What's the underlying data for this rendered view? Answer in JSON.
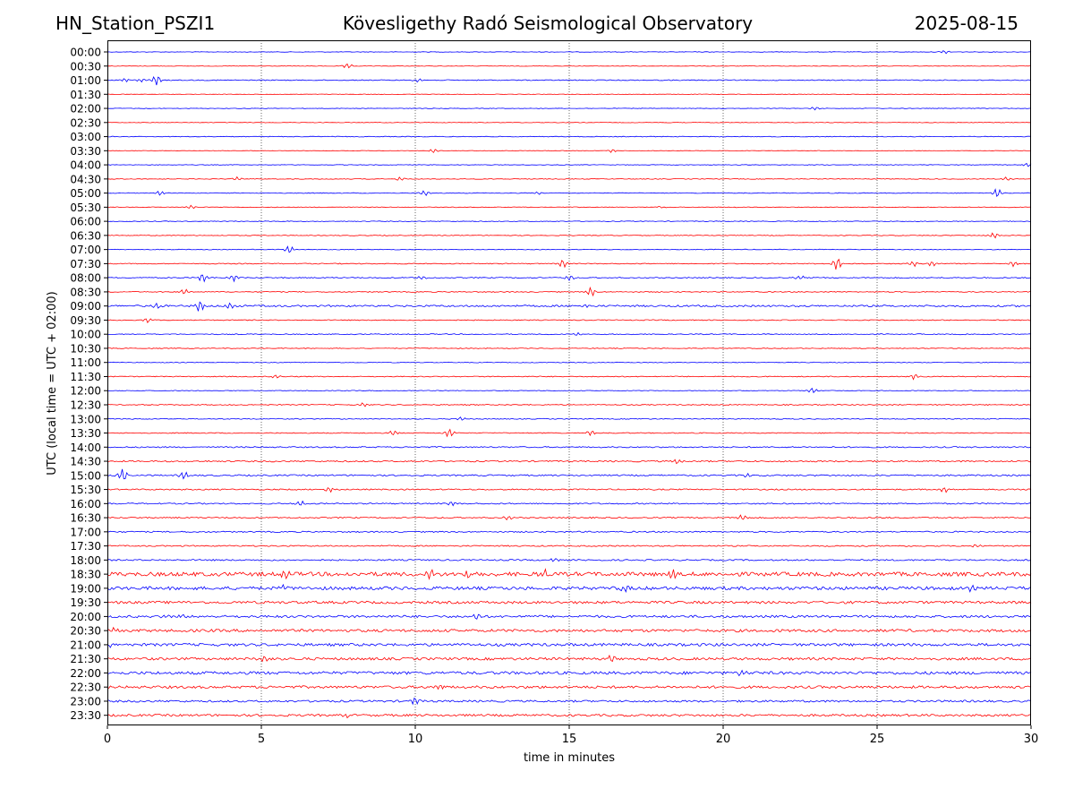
{
  "header": {
    "station": "HN_Station_PSZI1",
    "observatory": "Kövesligethy Radó Seismological Observatory",
    "date": "2025-08-15"
  },
  "colors": {
    "trace_a": "#0000ff",
    "trace_b": "#ff0000",
    "axis": "#000000",
    "grid": "#000000"
  },
  "chart_data": {
    "type": "line",
    "title": "Kövesligethy Radó Seismological Observatory",
    "xlabel": "time in minutes",
    "ylabel": "UTC (local time = UTC + 02:00)",
    "xlim": [
      0,
      30
    ],
    "x_ticks": [
      0,
      5,
      10,
      15,
      20,
      25,
      30
    ],
    "grid": "vertical dotted lines at 5, 10, 15, 20, 25",
    "color_pattern": "alternating blue (full hours) and red (half hours)",
    "rows": [
      "00:00",
      "00:30",
      "01:00",
      "01:30",
      "02:00",
      "02:30",
      "03:00",
      "03:30",
      "04:00",
      "04:30",
      "05:00",
      "05:30",
      "06:00",
      "06:30",
      "07:00",
      "07:30",
      "08:00",
      "08:30",
      "09:00",
      "09:30",
      "10:00",
      "10:30",
      "11:00",
      "11:30",
      "12:00",
      "12:30",
      "13:00",
      "13:30",
      "14:00",
      "14:30",
      "15:00",
      "15:30",
      "16:00",
      "16:30",
      "17:00",
      "17:30",
      "18:00",
      "18:30",
      "19:00",
      "19:30",
      "20:00",
      "20:30",
      "21:00",
      "21:30",
      "22:00",
      "22:30",
      "23:00",
      "23:30"
    ],
    "noise_level": [
      0.3,
      0.3,
      0.5,
      0.3,
      0.3,
      0.3,
      0.4,
      0.3,
      0.3,
      0.4,
      0.4,
      0.4,
      0.4,
      0.4,
      0.4,
      0.5,
      0.6,
      0.5,
      1.0,
      0.5,
      0.5,
      0.4,
      0.4,
      0.5,
      0.4,
      0.5,
      0.5,
      0.5,
      0.7,
      0.8,
      0.8,
      0.7,
      0.7,
      0.7,
      0.7,
      0.7,
      0.8,
      2.2,
      1.8,
      1.4,
      1.3,
      1.5,
      1.5,
      1.4,
      1.6,
      1.4,
      1.1,
      1.2
    ],
    "events": [
      {
        "row": "00:00",
        "t": 27.2,
        "amp": 2
      },
      {
        "row": "00:30",
        "t": 7.8,
        "amp": 3
      },
      {
        "row": "01:00",
        "t": 0.6,
        "amp": 2
      },
      {
        "row": "01:00",
        "t": 1.1,
        "amp": 2
      },
      {
        "row": "01:00",
        "t": 1.6,
        "amp": 6
      },
      {
        "row": "01:00",
        "t": 10.1,
        "amp": 2
      },
      {
        "row": "02:00",
        "t": 23.0,
        "amp": 2
      },
      {
        "row": "03:30",
        "t": 10.6,
        "amp": 2
      },
      {
        "row": "03:30",
        "t": 16.4,
        "amp": 2
      },
      {
        "row": "04:00",
        "t": 29.9,
        "amp": 2
      },
      {
        "row": "04:30",
        "t": 4.2,
        "amp": 2
      },
      {
        "row": "04:30",
        "t": 9.5,
        "amp": 2
      },
      {
        "row": "04:30",
        "t": 29.2,
        "amp": 2
      },
      {
        "row": "05:00",
        "t": 1.7,
        "amp": 3
      },
      {
        "row": "05:00",
        "t": 10.3,
        "amp": 3
      },
      {
        "row": "05:00",
        "t": 14.0,
        "amp": 2
      },
      {
        "row": "05:00",
        "t": 28.9,
        "amp": 5
      },
      {
        "row": "05:30",
        "t": 2.7,
        "amp": 2
      },
      {
        "row": "05:30",
        "t": 18.0,
        "amp": 1
      },
      {
        "row": "06:30",
        "t": 28.8,
        "amp": 3
      },
      {
        "row": "07:00",
        "t": 5.9,
        "amp": 4
      },
      {
        "row": "07:30",
        "t": 14.8,
        "amp": 5
      },
      {
        "row": "07:30",
        "t": 23.7,
        "amp": 7
      },
      {
        "row": "07:30",
        "t": 26.2,
        "amp": 3
      },
      {
        "row": "07:30",
        "t": 26.8,
        "amp": 3
      },
      {
        "row": "07:30",
        "t": 29.4,
        "amp": 3
      },
      {
        "row": "08:00",
        "t": 3.1,
        "amp": 5
      },
      {
        "row": "08:00",
        "t": 4.1,
        "amp": 4
      },
      {
        "row": "08:00",
        "t": 10.2,
        "amp": 2
      },
      {
        "row": "08:00",
        "t": 15.0,
        "amp": 3
      },
      {
        "row": "08:00",
        "t": 22.5,
        "amp": 2
      },
      {
        "row": "08:30",
        "t": 2.5,
        "amp": 3
      },
      {
        "row": "08:30",
        "t": 15.7,
        "amp": 5
      },
      {
        "row": "09:00",
        "t": 1.6,
        "amp": 3
      },
      {
        "row": "09:00",
        "t": 3.0,
        "amp": 6
      },
      {
        "row": "09:00",
        "t": 4.0,
        "amp": 3
      },
      {
        "row": "09:00",
        "t": 15.6,
        "amp": 2
      },
      {
        "row": "09:30",
        "t": 1.3,
        "amp": 3
      },
      {
        "row": "10:00",
        "t": 15.3,
        "amp": 2
      },
      {
        "row": "11:30",
        "t": 5.5,
        "amp": 2
      },
      {
        "row": "11:30",
        "t": 26.2,
        "amp": 3
      },
      {
        "row": "12:00",
        "t": 22.9,
        "amp": 3
      },
      {
        "row": "12:30",
        "t": 8.3,
        "amp": 2
      },
      {
        "row": "13:00",
        "t": 11.5,
        "amp": 2
      },
      {
        "row": "13:30",
        "t": 9.3,
        "amp": 3
      },
      {
        "row": "13:30",
        "t": 11.1,
        "amp": 5
      },
      {
        "row": "13:30",
        "t": 15.7,
        "amp": 3
      },
      {
        "row": "14:30",
        "t": 18.5,
        "amp": 3
      },
      {
        "row": "15:00",
        "t": 0.5,
        "amp": 7
      },
      {
        "row": "15:00",
        "t": 2.5,
        "amp": 5
      },
      {
        "row": "15:00",
        "t": 20.8,
        "amp": 2
      },
      {
        "row": "15:30",
        "t": 7.2,
        "amp": 3
      },
      {
        "row": "15:30",
        "t": 27.2,
        "amp": 3
      },
      {
        "row": "16:00",
        "t": 6.3,
        "amp": 3
      },
      {
        "row": "16:00",
        "t": 11.2,
        "amp": 3
      },
      {
        "row": "16:30",
        "t": 13.0,
        "amp": 2
      },
      {
        "row": "16:30",
        "t": 20.6,
        "amp": 3
      },
      {
        "row": "17:30",
        "t": 28.2,
        "amp": 2
      },
      {
        "row": "18:00",
        "t": 14.5,
        "amp": 2
      },
      {
        "row": "18:30",
        "t": 5.8,
        "amp": 4
      },
      {
        "row": "18:30",
        "t": 10.5,
        "amp": 4
      },
      {
        "row": "18:30",
        "t": 11.7,
        "amp": 5
      },
      {
        "row": "18:30",
        "t": 14.2,
        "amp": 4
      },
      {
        "row": "18:30",
        "t": 18.4,
        "amp": 4
      },
      {
        "row": "19:00",
        "t": 5.7,
        "amp": 3
      },
      {
        "row": "19:00",
        "t": 16.8,
        "amp": 3
      },
      {
        "row": "19:00",
        "t": 28.0,
        "amp": 3
      },
      {
        "row": "20:00",
        "t": 1.8,
        "amp": 3
      },
      {
        "row": "20:00",
        "t": 2.5,
        "amp": 3
      },
      {
        "row": "20:00",
        "t": 12.0,
        "amp": 4
      },
      {
        "row": "20:30",
        "t": 0.2,
        "amp": 3
      },
      {
        "row": "21:00",
        "t": 0.1,
        "amp": 2
      },
      {
        "row": "21:30",
        "t": 5.1,
        "amp": 3
      },
      {
        "row": "21:30",
        "t": 16.4,
        "amp": 5
      },
      {
        "row": "22:00",
        "t": 20.6,
        "amp": 4
      },
      {
        "row": "22:30",
        "t": 10.8,
        "amp": 3
      },
      {
        "row": "23:00",
        "t": 10.0,
        "amp": 4
      },
      {
        "row": "23:30",
        "t": 7.8,
        "amp": 2
      }
    ]
  }
}
